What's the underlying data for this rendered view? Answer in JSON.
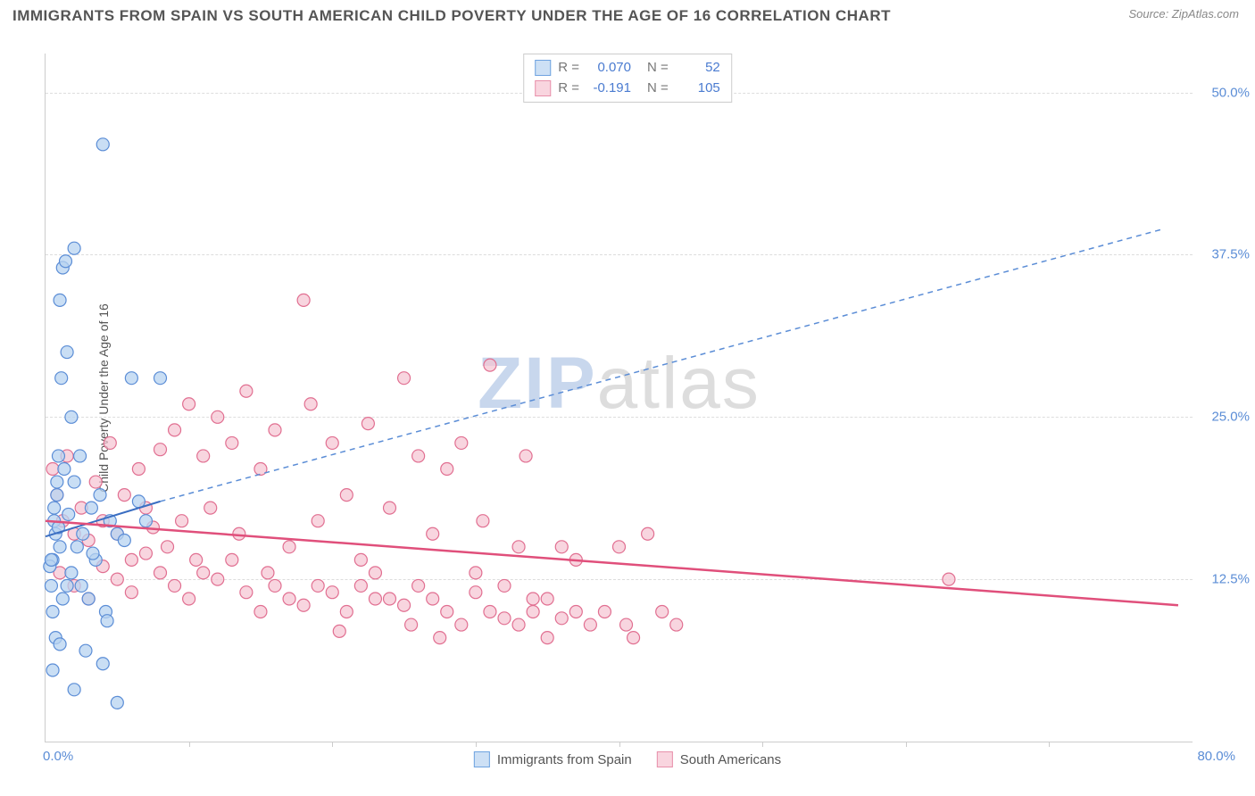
{
  "title": "IMMIGRANTS FROM SPAIN VS SOUTH AMERICAN CHILD POVERTY UNDER THE AGE OF 16 CORRELATION CHART",
  "source_prefix": "Source: ",
  "source_name": "ZipAtlas.com",
  "y_axis_label": "Child Poverty Under the Age of 16",
  "watermark": {
    "part1": "ZIP",
    "part2": "atlas"
  },
  "axes": {
    "xlim": [
      0,
      80
    ],
    "ylim": [
      0,
      53
    ],
    "x_tick_labels": {
      "min": "0.0%",
      "max": "80.0%"
    },
    "y_ticks": [
      {
        "v": 12.5,
        "label": "12.5%"
      },
      {
        "v": 25.0,
        "label": "25.0%"
      },
      {
        "v": 37.5,
        "label": "37.5%"
      },
      {
        "v": 50.0,
        "label": "50.0%"
      }
    ],
    "x_tick_marks": [
      10,
      20,
      30,
      40,
      50,
      60,
      70
    ],
    "tick_color": "#5b8dd6",
    "grid_color": "#dddddd",
    "axis_line_color": "#cccccc"
  },
  "stats": [
    {
      "color_fill": "#cde0f5",
      "color_stroke": "#6fa3e0",
      "r_label": "R =",
      "r": "0.070",
      "n_label": "N =",
      "n": "52"
    },
    {
      "color_fill": "#f9d5df",
      "color_stroke": "#e890ab",
      "r_label": "R =",
      "r": "-0.191",
      "n_label": "N =",
      "n": "105"
    }
  ],
  "legend": [
    {
      "label": "Immigrants from Spain",
      "fill": "#cde0f5",
      "stroke": "#6fa3e0"
    },
    {
      "label": "South Americans",
      "fill": "#f9d5df",
      "stroke": "#e890ab"
    }
  ],
  "series": {
    "spain": {
      "marker_fill": "#b7d3f0",
      "marker_stroke": "#5b8dd6",
      "marker_radius": 7,
      "marker_opacity": 0.75,
      "trend_solid": {
        "x1": 0,
        "y1": 15.8,
        "x2": 8,
        "y2": 18.5,
        "color": "#3a6ec2",
        "width": 2
      },
      "trend_dash": {
        "x1": 8,
        "y1": 18.5,
        "x2": 78,
        "y2": 39.5,
        "color": "#5b8dd6",
        "width": 1.5,
        "dash": "6,5"
      },
      "points": [
        [
          0.5,
          14
        ],
        [
          0.7,
          16
        ],
        [
          0.6,
          18
        ],
        [
          0.4,
          12
        ],
        [
          0.8,
          20
        ],
        [
          0.3,
          13.5
        ],
        [
          0.9,
          22
        ],
        [
          1.2,
          36.5
        ],
        [
          1.4,
          37
        ],
        [
          1.0,
          34
        ],
        [
          1.5,
          30
        ],
        [
          1.1,
          28
        ],
        [
          2.0,
          38
        ],
        [
          1.8,
          25
        ],
        [
          0.5,
          10
        ],
        [
          0.7,
          8
        ],
        [
          2.5,
          12
        ],
        [
          3.0,
          11
        ],
        [
          4.2,
          10
        ],
        [
          4.3,
          9.3
        ],
        [
          3.5,
          14
        ],
        [
          5.0,
          16
        ],
        [
          6.0,
          28
        ],
        [
          8.0,
          28
        ],
        [
          4.0,
          6
        ],
        [
          2.8,
          7
        ],
        [
          1.5,
          12
        ],
        [
          2.2,
          15
        ],
        [
          3.2,
          18
        ],
        [
          1.0,
          15
        ],
        [
          0.6,
          17
        ],
        [
          0.8,
          19
        ],
        [
          1.3,
          21
        ],
        [
          0.4,
          14
        ],
        [
          0.9,
          16.5
        ],
        [
          1.6,
          17.5
        ],
        [
          2.0,
          20
        ],
        [
          2.4,
          22
        ],
        [
          3.8,
          19
        ],
        [
          4.5,
          17
        ],
        [
          5.5,
          15.5
        ],
        [
          6.5,
          18.5
        ],
        [
          7.0,
          17
        ],
        [
          2.0,
          4
        ],
        [
          5.0,
          3
        ],
        [
          4.0,
          46
        ],
        [
          1.2,
          11
        ],
        [
          1.8,
          13
        ],
        [
          2.6,
          16
        ],
        [
          3.3,
          14.5
        ],
        [
          0.5,
          5.5
        ],
        [
          1.0,
          7.5
        ]
      ]
    },
    "south_am": {
      "marker_fill": "#f5c5d3",
      "marker_stroke": "#e16f91",
      "marker_radius": 7,
      "marker_opacity": 0.72,
      "trend_solid": {
        "x1": 0,
        "y1": 17.0,
        "x2": 79,
        "y2": 10.5,
        "color": "#e04f7b",
        "width": 2.5
      },
      "points": [
        [
          0.5,
          21
        ],
        [
          0.8,
          19
        ],
        [
          1.2,
          17
        ],
        [
          1.5,
          22
        ],
        [
          2,
          16
        ],
        [
          2.5,
          18
        ],
        [
          3,
          15.5
        ],
        [
          3.5,
          20
        ],
        [
          4,
          17
        ],
        [
          4.5,
          23
        ],
        [
          5,
          16
        ],
        [
          5.5,
          19
        ],
        [
          6,
          14
        ],
        [
          6.5,
          21
        ],
        [
          7,
          18
        ],
        [
          7.5,
          16.5
        ],
        [
          8,
          22.5
        ],
        [
          8.5,
          15
        ],
        [
          9,
          24
        ],
        [
          9.5,
          17
        ],
        [
          10,
          26
        ],
        [
          10.5,
          14
        ],
        [
          11,
          22
        ],
        [
          11.5,
          18
        ],
        [
          12,
          25
        ],
        [
          13,
          23
        ],
        [
          13.5,
          16
        ],
        [
          14,
          27
        ],
        [
          15,
          21
        ],
        [
          15.5,
          13
        ],
        [
          16,
          24
        ],
        [
          17,
          15
        ],
        [
          18,
          34
        ],
        [
          18.5,
          26
        ],
        [
          19,
          17
        ],
        [
          20,
          23
        ],
        [
          20.5,
          8.5
        ],
        [
          21,
          19
        ],
        [
          22,
          14
        ],
        [
          22.5,
          24.5
        ],
        [
          23,
          11
        ],
        [
          24,
          18
        ],
        [
          25,
          28
        ],
        [
          25.5,
          9
        ],
        [
          26,
          22
        ],
        [
          27,
          16
        ],
        [
          27.5,
          8
        ],
        [
          28,
          21
        ],
        [
          29,
          23
        ],
        [
          30,
          13
        ],
        [
          30.5,
          17
        ],
        [
          31,
          29
        ],
        [
          32,
          9.5
        ],
        [
          33,
          15
        ],
        [
          33.5,
          22
        ],
        [
          34,
          11
        ],
        [
          35,
          8
        ],
        [
          36,
          15
        ],
        [
          37,
          14
        ],
        [
          38,
          9
        ],
        [
          39,
          10
        ],
        [
          40,
          15
        ],
        [
          40.5,
          9
        ],
        [
          41,
          8
        ],
        [
          42,
          16
        ],
        [
          43,
          10
        ],
        [
          44,
          9
        ],
        [
          63,
          12.5
        ],
        [
          1,
          13
        ],
        [
          2,
          12
        ],
        [
          3,
          11
        ],
        [
          4,
          13.5
        ],
        [
          5,
          12.5
        ],
        [
          6,
          11.5
        ],
        [
          7,
          14.5
        ],
        [
          8,
          13
        ],
        [
          9,
          12
        ],
        [
          10,
          11
        ],
        [
          11,
          13
        ],
        [
          12,
          12.5
        ],
        [
          13,
          14
        ],
        [
          14,
          11.5
        ],
        [
          15,
          10
        ],
        [
          16,
          12
        ],
        [
          17,
          11
        ],
        [
          18,
          10.5
        ],
        [
          19,
          12
        ],
        [
          20,
          11.5
        ],
        [
          21,
          10
        ],
        [
          22,
          12
        ],
        [
          23,
          13
        ],
        [
          24,
          11
        ],
        [
          25,
          10.5
        ],
        [
          26,
          12
        ],
        [
          27,
          11
        ],
        [
          28,
          10
        ],
        [
          29,
          9
        ],
        [
          30,
          11.5
        ],
        [
          31,
          10
        ],
        [
          32,
          12
        ],
        [
          33,
          9
        ],
        [
          34,
          10
        ],
        [
          35,
          11
        ],
        [
          36,
          9.5
        ],
        [
          37,
          10
        ]
      ]
    }
  }
}
